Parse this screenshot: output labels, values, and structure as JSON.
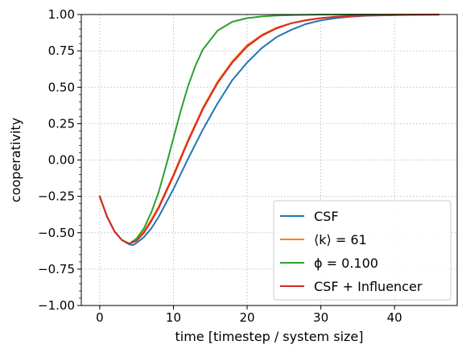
{
  "chart_data": {
    "type": "line",
    "title": "",
    "xlabel": "time [timestep / system size]",
    "ylabel": "cooperativity",
    "xlim": [
      -2.5,
      48.5
    ],
    "ylim": [
      -1.0,
      1.0
    ],
    "xticks": [
      0,
      10,
      20,
      30,
      40
    ],
    "yticks": [
      -1.0,
      -0.75,
      -0.5,
      -0.25,
      0.0,
      0.25,
      0.5,
      0.75,
      1.0
    ],
    "xtick_labels": [
      "0",
      "10",
      "20",
      "30",
      "40"
    ],
    "ytick_labels": [
      "−1.00",
      "−0.75",
      "−0.50",
      "−0.25",
      "0.00",
      "0.25",
      "0.50",
      "0.75",
      "1.00"
    ],
    "grid": true,
    "legend_position": "lower-right",
    "series": [
      {
        "name": "CSF",
        "color": "#1f77b4",
        "x": [
          0,
          1,
          2,
          3,
          4,
          4.5,
          5,
          6,
          7,
          8,
          10,
          12,
          14,
          16,
          18,
          20,
          22,
          24,
          26,
          28,
          30,
          32,
          34,
          36,
          38,
          40,
          42,
          44,
          46
        ],
        "y": [
          -0.25,
          -0.39,
          -0.49,
          -0.55,
          -0.58,
          -0.585,
          -0.57,
          -0.53,
          -0.47,
          -0.39,
          -0.2,
          0.01,
          0.21,
          0.39,
          0.55,
          0.67,
          0.77,
          0.845,
          0.895,
          0.935,
          0.96,
          0.975,
          0.985,
          0.991,
          0.994,
          0.996,
          0.997,
          0.998,
          0.999
        ]
      },
      {
        "name": "⟨k⟩ = 61",
        "color": "#ff7f0e",
        "x": [
          0,
          1,
          2,
          3,
          4,
          5,
          6,
          7,
          8,
          10,
          12,
          14,
          16,
          18,
          20,
          22,
          24,
          26,
          28,
          30,
          32,
          34,
          36,
          38,
          40,
          42,
          44,
          46
        ],
        "y": [
          -0.25,
          -0.39,
          -0.49,
          -0.55,
          -0.575,
          -0.55,
          -0.49,
          -0.41,
          -0.32,
          -0.1,
          0.14,
          0.36,
          0.54,
          0.68,
          0.79,
          0.86,
          0.91,
          0.94,
          0.962,
          0.976,
          0.985,
          0.99,
          0.993,
          0.995,
          0.997,
          0.998,
          0.999,
          0.999
        ]
      },
      {
        "name": "ϕ = 0.100",
        "color": "#2ca02c",
        "x": [
          0,
          1,
          2,
          3,
          4,
          5,
          6,
          7,
          8,
          9,
          10,
          11,
          12,
          13,
          14,
          16,
          18,
          20,
          22,
          24,
          26,
          28,
          30,
          32,
          34,
          36,
          38,
          40,
          42,
          44,
          46
        ],
        "y": [
          -0.25,
          -0.39,
          -0.49,
          -0.55,
          -0.575,
          -0.54,
          -0.47,
          -0.36,
          -0.22,
          -0.04,
          0.15,
          0.34,
          0.51,
          0.65,
          0.76,
          0.89,
          0.95,
          0.975,
          0.987,
          0.993,
          0.996,
          0.998,
          0.999,
          0.999,
          1.0,
          1.0,
          1.0,
          1.0,
          1.0,
          1.0,
          1.0
        ]
      },
      {
        "name": "CSF + Influencer",
        "color": "#d62728",
        "x": [
          0,
          1,
          2,
          3,
          4,
          5,
          6,
          7,
          8,
          10,
          12,
          14,
          16,
          18,
          20,
          22,
          24,
          26,
          28,
          30,
          32,
          34,
          36,
          38,
          40,
          42,
          44,
          46
        ],
        "y": [
          -0.25,
          -0.39,
          -0.49,
          -0.55,
          -0.575,
          -0.555,
          -0.5,
          -0.42,
          -0.33,
          -0.11,
          0.13,
          0.35,
          0.53,
          0.67,
          0.78,
          0.855,
          0.905,
          0.94,
          0.96,
          0.975,
          0.984,
          0.99,
          0.993,
          0.995,
          0.997,
          0.998,
          0.999,
          0.999
        ]
      }
    ]
  }
}
